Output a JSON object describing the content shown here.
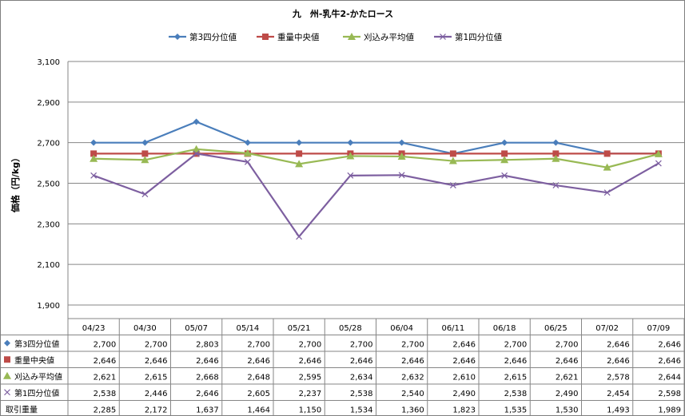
{
  "chart_data": {
    "type": "line",
    "title": "九　州-乳牛2-かたロース",
    "ylabel": "価格（円/kg）",
    "ylim": [
      1900,
      3100
    ],
    "yticks": [
      "1,900",
      "2,100",
      "2,300",
      "2,500",
      "2,700",
      "2,900",
      "3,100"
    ],
    "ytick_values": [
      1900,
      2100,
      2300,
      2500,
      2700,
      2900,
      3100
    ],
    "grid": true,
    "legend_position": "top",
    "categories": [
      "04/23",
      "04/30",
      "05/07",
      "05/14",
      "05/21",
      "05/28",
      "06/04",
      "06/11",
      "06/18",
      "06/25",
      "07/02",
      "07/09"
    ],
    "series": [
      {
        "name": "第3四分位値",
        "color": "#4a7ebb",
        "marker": "diamond",
        "values": [
          2700,
          2700,
          2803,
          2700,
          2700,
          2700,
          2700,
          2646,
          2700,
          2700,
          2646,
          2646
        ],
        "labels": [
          "2,700",
          "2,700",
          "2,803",
          "2,700",
          "2,700",
          "2,700",
          "2,700",
          "2,646",
          "2,700",
          "2,700",
          "2,646",
          "2,646"
        ]
      },
      {
        "name": "重量中央値",
        "color": "#be4b48",
        "marker": "square",
        "values": [
          2646,
          2646,
          2646,
          2646,
          2646,
          2646,
          2646,
          2646,
          2646,
          2646,
          2646,
          2646
        ],
        "labels": [
          "2,646",
          "2,646",
          "2,646",
          "2,646",
          "2,646",
          "2,646",
          "2,646",
          "2,646",
          "2,646",
          "2,646",
          "2,646",
          "2,646"
        ]
      },
      {
        "name": "刈込み平均値",
        "color": "#98b954",
        "marker": "triangle",
        "values": [
          2621,
          2615,
          2668,
          2648,
          2595,
          2634,
          2632,
          2610,
          2615,
          2621,
          2578,
          2644
        ],
        "labels": [
          "2,621",
          "2,615",
          "2,668",
          "2,648",
          "2,595",
          "2,634",
          "2,632",
          "2,610",
          "2,615",
          "2,621",
          "2,578",
          "2,644"
        ]
      },
      {
        "name": "第1四分位値",
        "color": "#7d5fa0",
        "marker": "x",
        "values": [
          2538,
          2446,
          2646,
          2605,
          2237,
          2538,
          2540,
          2490,
          2538,
          2490,
          2454,
          2598
        ],
        "labels": [
          "2,538",
          "2,446",
          "2,646",
          "2,605",
          "2,237",
          "2,538",
          "2,540",
          "2,490",
          "2,538",
          "2,490",
          "2,454",
          "2,598"
        ]
      }
    ],
    "extra_rows": [
      {
        "name": "取引重量",
        "values": [
          2285,
          2172,
          1637,
          1464,
          1150,
          1534,
          1360,
          1823,
          1535,
          1530,
          1493,
          1989
        ],
        "labels": [
          "2,285",
          "2,172",
          "1,637",
          "1,464",
          "1,150",
          "1,534",
          "1,360",
          "1,823",
          "1,535",
          "1,530",
          "1,493",
          "1,989"
        ]
      }
    ]
  },
  "colors": {
    "grid": "#868686",
    "table_border": "#868686"
  }
}
